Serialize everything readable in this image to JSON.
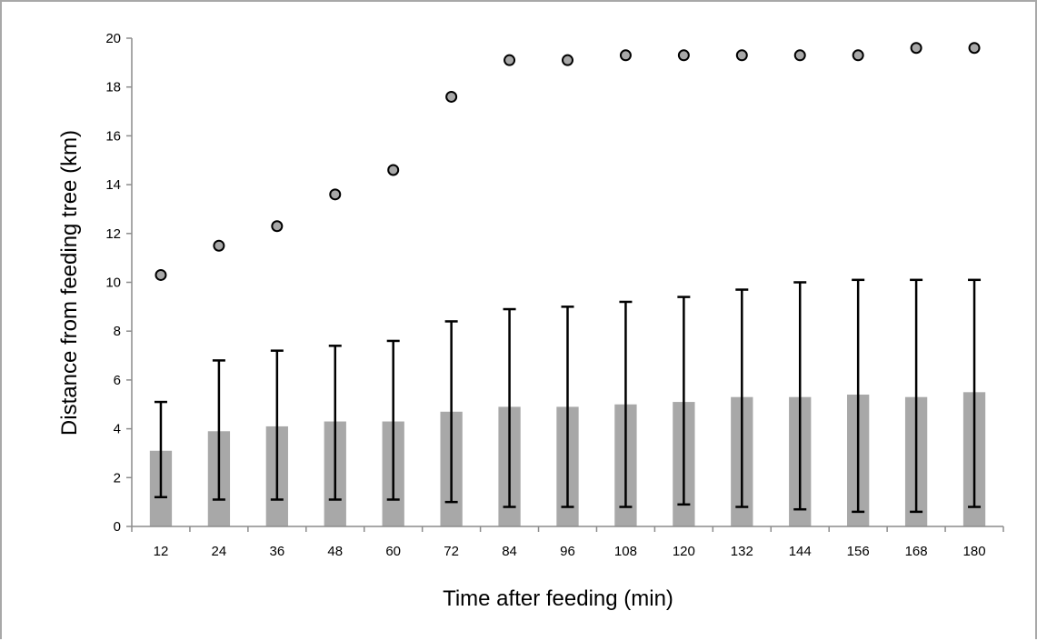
{
  "chart_data": {
    "type": "bar",
    "title": "",
    "xlabel": "Time after feeding (min)",
    "ylabel": "Distance from feeding tree (km)",
    "ylim": [
      0,
      20
    ],
    "yticks": [
      "0",
      "2",
      "4",
      "6",
      "8",
      "10",
      "12",
      "14",
      "16",
      "18",
      "20"
    ],
    "categories": [
      "12",
      "24",
      "36",
      "48",
      "60",
      "72",
      "84",
      "96",
      "108",
      "120",
      "132",
      "144",
      "156",
      "168",
      "180"
    ],
    "series": [
      {
        "kind": "bar",
        "color": "#a8a8a8",
        "values": [
          3.1,
          3.9,
          4.1,
          4.3,
          4.3,
          4.7,
          4.9,
          4.9,
          5.0,
          5.1,
          5.3,
          5.3,
          5.4,
          5.3,
          5.5
        ],
        "error_low": [
          1.2,
          1.1,
          1.1,
          1.1,
          1.1,
          1.0,
          0.8,
          0.8,
          0.8,
          0.9,
          0.8,
          0.7,
          0.6,
          0.6,
          0.8
        ],
        "error_high": [
          5.1,
          6.8,
          7.2,
          7.4,
          7.6,
          8.4,
          8.9,
          9.0,
          9.2,
          9.4,
          9.7,
          10.0,
          10.1,
          10.1,
          10.1
        ]
      },
      {
        "kind": "scatter",
        "color": "#a8a8a8",
        "values": [
          10.3,
          11.5,
          12.3,
          13.6,
          14.6,
          17.6,
          19.1,
          19.1,
          19.3,
          19.3,
          19.3,
          19.3,
          19.3,
          19.6,
          19.6
        ]
      }
    ],
    "grid": false,
    "legend": "none"
  }
}
